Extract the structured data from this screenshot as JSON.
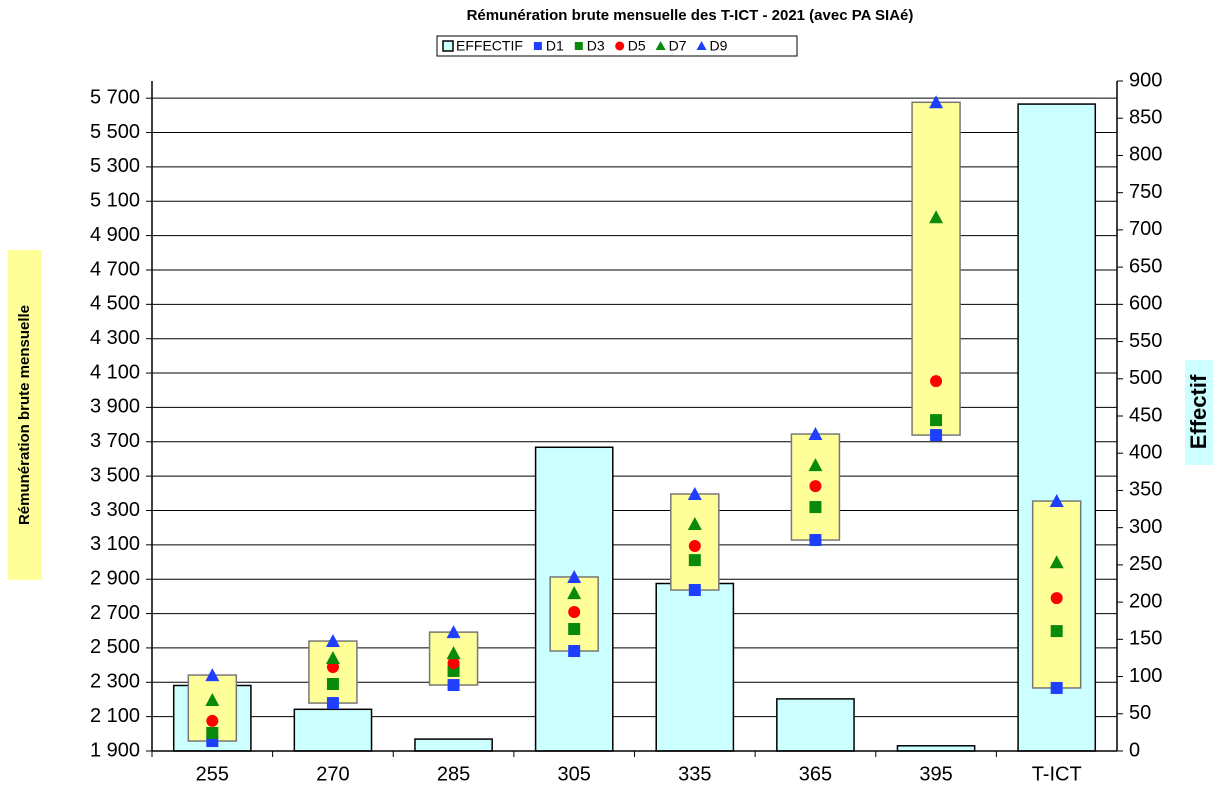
{
  "chart_data": {
    "type": "bar",
    "title": "Rémunération brute mensuelle des T-ICT - 2021 (avec PA SIAé)",
    "y_label": "Rémunération brute mensuelle",
    "y2_label": "Effectif",
    "categories": [
      "255",
      "270",
      "285",
      "305",
      "335",
      "365",
      "395",
      "T-ICT"
    ],
    "ylim": [
      1900,
      5800
    ],
    "yticks": [
      {
        "value": 1900,
        "label": "1 900"
      },
      {
        "value": 2100,
        "label": "2 100"
      },
      {
        "value": 2300,
        "label": "2 300"
      },
      {
        "value": 2500,
        "label": "2 500"
      },
      {
        "value": 2700,
        "label": "2 700"
      },
      {
        "value": 2900,
        "label": "2 900"
      },
      {
        "value": 3100,
        "label": "3 100"
      },
      {
        "value": 3300,
        "label": "3 300"
      },
      {
        "value": 3500,
        "label": "3 500"
      },
      {
        "value": 3700,
        "label": "3 700"
      },
      {
        "value": 3900,
        "label": "3 900"
      },
      {
        "value": 4100,
        "label": "4 100"
      },
      {
        "value": 4300,
        "label": "4 300"
      },
      {
        "value": 4500,
        "label": "4 500"
      },
      {
        "value": 4700,
        "label": "4 700"
      },
      {
        "value": 4900,
        "label": "4 900"
      },
      {
        "value": 5100,
        "label": "5 100"
      },
      {
        "value": 5300,
        "label": "5 300"
      },
      {
        "value": 5500,
        "label": "5 500"
      },
      {
        "value": 5700,
        "label": "5 700"
      }
    ],
    "y2lim": [
      0,
      900
    ],
    "y2ticks": [
      0,
      50,
      100,
      150,
      200,
      250,
      300,
      350,
      400,
      450,
      500,
      550,
      600,
      650,
      700,
      750,
      800,
      850,
      900
    ],
    "grid": true,
    "series": [
      {
        "name": "EFFECTIF",
        "type": "bar",
        "axis": "y2",
        "color": "#ccffff",
        "values": [
          88,
          56,
          16,
          408,
          225,
          70,
          7,
          869
        ]
      },
      {
        "name": "D1",
        "type": "scatter",
        "marker": "square",
        "color": "#1f3fff",
        "values": [
          1958,
          2179,
          2284,
          2482,
          2837,
          3128,
          3739,
          2267
        ]
      },
      {
        "name": "D3",
        "type": "scatter",
        "marker": "square",
        "color": "#0a8a0a",
        "values": [
          2005,
          2290,
          2366,
          2610,
          3011,
          3320,
          3826,
          2598
        ]
      },
      {
        "name": "D5",
        "type": "scatter",
        "marker": "circle",
        "color": "#ff0000",
        "values": [
          2075,
          2389,
          2412,
          2709,
          3093,
          3442,
          4053,
          2790
        ]
      },
      {
        "name": "D7",
        "type": "scatter",
        "marker": "triangle",
        "color": "#0a8a0a",
        "values": [
          2197,
          2441,
          2470,
          2819,
          3221,
          3564,
          5007,
          2999
        ]
      },
      {
        "name": "D9",
        "type": "scatter",
        "marker": "triangle",
        "color": "#1f3fff",
        "values": [
          2342,
          2540,
          2592,
          2913,
          3396,
          3745,
          5676,
          3355
        ]
      }
    ],
    "range_box": {
      "color": "#ffff99"
    }
  }
}
